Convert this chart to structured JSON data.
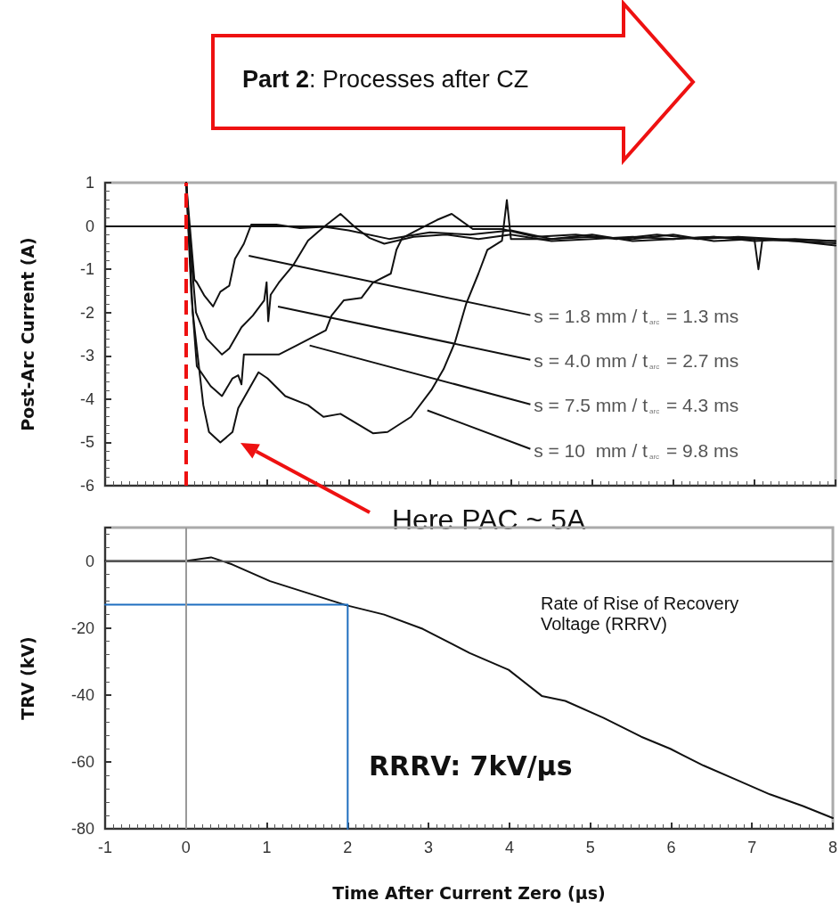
{
  "chart_data": [
    {
      "type": "line",
      "ylabel": "Post-Arc Current (A)",
      "xlim": [
        -1,
        8
      ],
      "xticks": [
        -1,
        0,
        1,
        2,
        3,
        4,
        5,
        6,
        7,
        8
      ],
      "ylim": [
        -6,
        1
      ],
      "yticks": [
        -6,
        -5,
        -4,
        -3,
        -2,
        -1,
        0,
        1
      ],
      "tick_labels": "y",
      "marker": "none",
      "line_style": "solid",
      "series": [
        {
          "name": "s = 1.8 mm / t$_{arc}$ = 1.3 ms",
          "color": "#111111",
          "x": [
            0,
            0.03,
            0.1,
            0.13,
            0.22,
            0.33,
            0.42,
            0.53,
            0.6,
            0.71,
            0.8,
            1.11,
            1.4,
            1.7,
            2.0,
            2.5,
            3.0,
            3.5,
            4.0,
            4.5,
            5.0,
            5.5,
            6.0,
            6.5,
            7.0,
            7.5,
            8.0
          ],
          "values": [
            1,
            0.3,
            -1.24,
            -1.3,
            -1.6,
            -1.86,
            -1.52,
            -1.38,
            -0.76,
            -0.41,
            0.03,
            0.03,
            -0.05,
            -0.02,
            -0.1,
            -0.3,
            -0.15,
            -0.2,
            -0.1,
            -0.3,
            -0.25,
            -0.3,
            -0.2,
            -0.35,
            -0.3,
            -0.35,
            -0.4
          ]
        },
        {
          "name": "s = 4.0 mm / t$_{arc}$ = 2.7 ms",
          "color": "#111111",
          "x": [
            0,
            0.05,
            0.12,
            0.25,
            0.44,
            0.53,
            0.68,
            0.82,
            0.96,
            0.99,
            1.01,
            1.04,
            1.14,
            1.32,
            1.5,
            1.69,
            1.9,
            2.08,
            2.26,
            2.44,
            2.8,
            3.2,
            3.6,
            4.0,
            4.5,
            5.0,
            5.5,
            6.0,
            6.5,
            7.0,
            7.5,
            8.0
          ],
          "values": [
            1,
            -0.5,
            -2.0,
            -2.6,
            -2.97,
            -2.83,
            -2.34,
            -2.07,
            -1.72,
            -1.3,
            -2.2,
            -1.59,
            -1.31,
            -0.9,
            -0.34,
            -0.03,
            0.28,
            -0.03,
            -0.28,
            -0.41,
            -0.25,
            -0.2,
            -0.3,
            -0.2,
            -0.35,
            -0.3,
            -0.25,
            -0.3,
            -0.25,
            -0.35,
            -0.3,
            -0.35
          ]
        },
        {
          "name": "s = 7.5 mm / t$_{arc}$ = 4.3 ms",
          "color": "#111111",
          "x": [
            0,
            0.06,
            0.13,
            0.3,
            0.44,
            0.57,
            0.64,
            0.68,
            0.71,
            0.86,
            1.14,
            1.36,
            1.72,
            1.79,
            1.94,
            2.16,
            2.3,
            2.52,
            2.59,
            2.66,
            2.8,
            3.09,
            3.27,
            3.53,
            3.89,
            4.3,
            4.8,
            5.3,
            5.8,
            6.3,
            6.8,
            7.3,
            8.0
          ],
          "values": [
            1,
            -1.5,
            -3.24,
            -3.7,
            -3.93,
            -3.52,
            -3.45,
            -3.66,
            -2.97,
            -2.97,
            -2.97,
            -2.76,
            -2.41,
            -2.07,
            -1.72,
            -1.66,
            -1.31,
            -1.1,
            -0.55,
            -0.28,
            -0.14,
            0.14,
            0.28,
            -0.07,
            -0.07,
            -0.25,
            -0.2,
            -0.3,
            -0.2,
            -0.3,
            -0.25,
            -0.3,
            -0.35
          ]
        },
        {
          "name": "s = 10  mm / t$_{arc}$ = 9.8 ms",
          "color": "#111111",
          "x": [
            0,
            0.08,
            0.21,
            0.28,
            0.42,
            0.57,
            0.64,
            0.89,
            1.0,
            1.22,
            1.5,
            1.69,
            1.9,
            2.3,
            2.48,
            2.77,
            3.02,
            3.17,
            3.31,
            3.45,
            3.6,
            3.71,
            3.89,
            3.95,
            4.0,
            4.5,
            5.0,
            5.5,
            6.0,
            6.5,
            7.0,
            7.05,
            7.1,
            7.5,
            8.0
          ],
          "values": [
            1,
            -2,
            -4.14,
            -4.76,
            -5.0,
            -4.76,
            -4.21,
            -3.38,
            -3.52,
            -3.93,
            -4.14,
            -4.41,
            -4.34,
            -4.79,
            -4.76,
            -4.41,
            -3.79,
            -3.31,
            -2.69,
            -1.79,
            -1.1,
            -0.55,
            -0.34,
            0.6,
            -0.3,
            -0.3,
            -0.2,
            -0.35,
            -0.3,
            -0.25,
            -0.3,
            -1.0,
            -0.3,
            -0.35,
            -0.45
          ]
        }
      ],
      "ref_lines": [
        {
          "axis": "y",
          "value": 0,
          "color": "#111111",
          "line_style": "solid"
        },
        {
          "axis": "x",
          "value": 0,
          "color": "#ee1111",
          "line_style": "dashed"
        }
      ],
      "annotations": [
        "Part 2: Processes after CZ",
        "Here PAC ~ 5A"
      ]
    },
    {
      "type": "line",
      "xlabel": "Time After Current Zero (µs)",
      "ylabel": "TRV (kV)",
      "xlim": [
        -1,
        8
      ],
      "xticks": [
        -1,
        0,
        1,
        2,
        3,
        4,
        5,
        6,
        7,
        8
      ],
      "ylim": [
        -80,
        10
      ],
      "yticks": [
        -80,
        -60,
        -40,
        -20,
        0
      ],
      "marker": "none",
      "line_style": "solid",
      "series": [
        {
          "color": "#111111",
          "x": [
            -1,
            0,
            0.31,
            0.57,
            1.04,
            1.51,
            1.98,
            2.45,
            2.93,
            3.51,
            3.99,
            4.4,
            4.69,
            5.16,
            5.63,
            5.99,
            6.4,
            6.81,
            7.22,
            7.63,
            8.0
          ],
          "values": [
            0,
            0,
            1.1,
            -1.0,
            -6.0,
            -9.6,
            -13.2,
            -16.0,
            -20.3,
            -27.5,
            -32.5,
            -40.3,
            -41.8,
            -46.8,
            -52.5,
            -56.1,
            -61.1,
            -65.4,
            -69.7,
            -73.2,
            -76.8
          ]
        },
        {
          "color": "#1f6fbf",
          "x": [
            -1,
            2,
            2
          ],
          "values": [
            -13,
            -13,
            -80
          ]
        }
      ],
      "ref_lines": [
        {
          "axis": "y",
          "value": 0,
          "color": "#555555",
          "line_style": "solid"
        },
        {
          "axis": "x",
          "value": 0,
          "color": "#999999",
          "line_style": "solid"
        }
      ],
      "annotations": [
        "Rate of Rise of Recovery Voltage (RRRV)",
        "RRRV: 7kV/µs"
      ]
    }
  ]
}
